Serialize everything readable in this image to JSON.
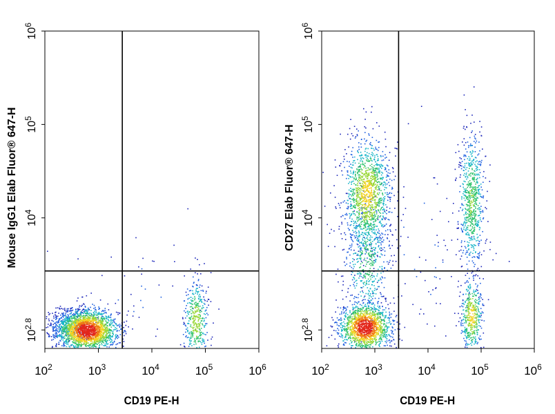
{
  "chart_data": [
    {
      "type": "scatter",
      "subtype": "flow-cytometry-density-dot-plot",
      "xlabel": "CD19 PE-H",
      "ylabel": "Mouse IgG1 Elab Fluor® 647-H",
      "x_scale": "log",
      "y_scale": "log",
      "xlim": [
        100,
        1000000
      ],
      "ylim": [
        400,
        1000000
      ],
      "x_ticks": [
        {
          "value": 100,
          "base": "10",
          "exp": "2"
        },
        {
          "value": 1000,
          "base": "10",
          "exp": "3"
        },
        {
          "value": 10000,
          "base": "10",
          "exp": "4"
        },
        {
          "value": 100000,
          "base": "10",
          "exp": "5"
        },
        {
          "value": 1000000,
          "base": "10",
          "exp": "6"
        }
      ],
      "y_ticks": [
        {
          "value": 631,
          "base": "10",
          "exp": "2.8"
        },
        {
          "value": 10000,
          "base": "10",
          "exp": "4"
        },
        {
          "value": 100000,
          "base": "10",
          "exp": "5"
        },
        {
          "value": 1000000,
          "base": "10",
          "exp": "6"
        }
      ],
      "gate": {
        "x": 2800,
        "y": 2700
      },
      "populations": [
        {
          "x_center": 600,
          "y_center": 630,
          "x_spread_decades": 0.28,
          "y_spread_decades": 0.11,
          "points": 2000,
          "peak_density": 1.0
        },
        {
          "x_center": 300,
          "y_center": 700,
          "x_spread_decades": 0.22,
          "y_spread_decades": 0.09,
          "points": 400,
          "peak_density": 0.2
        },
        {
          "x_center": 65000,
          "y_center": 800,
          "x_spread_decades": 0.11,
          "y_spread_decades": 0.22,
          "points": 400,
          "peak_density": 0.5
        },
        {
          "x_center": 5000,
          "y_center": 1500,
          "x_spread_decades": 0.8,
          "y_spread_decades": 0.4,
          "points": 60,
          "peak_density": 0.05
        }
      ]
    },
    {
      "type": "scatter",
      "subtype": "flow-cytometry-density-dot-plot",
      "xlabel": "CD19 PE-H",
      "ylabel": "CD27 Elab Fluor® 647-H",
      "x_scale": "log",
      "y_scale": "log",
      "xlim": [
        100,
        1000000
      ],
      "ylim": [
        400,
        1000000
      ],
      "x_ticks": [
        {
          "value": 100,
          "base": "10",
          "exp": "2"
        },
        {
          "value": 1000,
          "base": "10",
          "exp": "3"
        },
        {
          "value": 10000,
          "base": "10",
          "exp": "4"
        },
        {
          "value": 100000,
          "base": "10",
          "exp": "5"
        },
        {
          "value": 1000000,
          "base": "10",
          "exp": "6"
        }
      ],
      "y_ticks": [
        {
          "value": 631,
          "base": "10",
          "exp": "2.8"
        },
        {
          "value": 10000,
          "base": "10",
          "exp": "4"
        },
        {
          "value": 100000,
          "base": "10",
          "exp": "5"
        },
        {
          "value": 1000000,
          "base": "10",
          "exp": "6"
        }
      ],
      "gate": {
        "x": 2800,
        "y": 2700
      },
      "populations": [
        {
          "x_center": 650,
          "y_center": 680,
          "x_spread_decades": 0.24,
          "y_spread_decades": 0.13,
          "points": 1500,
          "peak_density": 1.0
        },
        {
          "x_center": 700,
          "y_center": 18000,
          "x_spread_decades": 0.22,
          "y_spread_decades": 0.3,
          "points": 1300,
          "peak_density": 0.6
        },
        {
          "x_center": 700,
          "y_center": 3500,
          "x_spread_decades": 0.22,
          "y_spread_decades": 0.35,
          "points": 500,
          "peak_density": 0.3
        },
        {
          "x_center": 65000,
          "y_center": 900,
          "x_spread_decades": 0.1,
          "y_spread_decades": 0.2,
          "points": 450,
          "peak_density": 0.6
        },
        {
          "x_center": 65000,
          "y_center": 15000,
          "x_spread_decades": 0.12,
          "y_spread_decades": 0.38,
          "points": 700,
          "peak_density": 0.4
        },
        {
          "x_center": 5000,
          "y_center": 4000,
          "x_spread_decades": 0.8,
          "y_spread_decades": 0.7,
          "points": 120,
          "peak_density": 0.05
        }
      ]
    }
  ]
}
